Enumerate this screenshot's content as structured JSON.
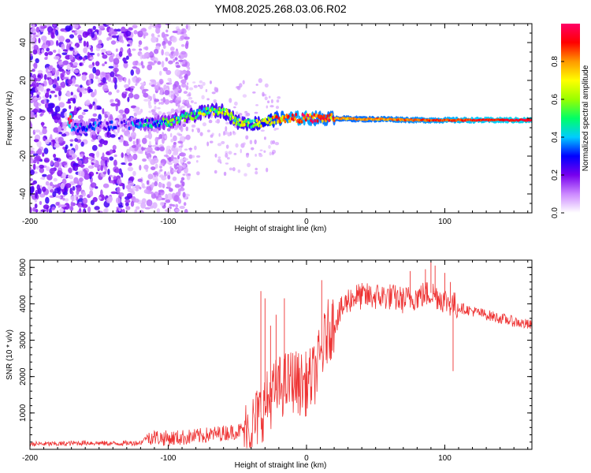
{
  "chart_data": [
    {
      "type": "heatmap",
      "title": "YM08.2025.268.03.06.R02",
      "xlabel": "Height of straight line (km)",
      "ylabel": "Frequency (Hz)",
      "xlim": [
        -200,
        163
      ],
      "ylim": [
        -50,
        50
      ],
      "xticks": [
        -200,
        -100,
        0,
        100
      ],
      "yticks": [
        -40,
        -20,
        0,
        20,
        40
      ],
      "colorbar": {
        "label": "Normalized spectral amplitude",
        "range": [
          0,
          1
        ],
        "ticks": [
          "0.0",
          "0.2",
          "0.4",
          "0.6",
          "0.8"
        ],
        "colors": [
          "#ffffff",
          "#cc88ff",
          "#7700ee",
          "#0000ff",
          "#00ccff",
          "#00ff66",
          "#99ff00",
          "#ffff00",
          "#ff9900",
          "#ff0000",
          "#ff0066"
        ]
      },
      "ridge": [
        {
          "x": -170,
          "f": -5.0,
          "a": 0.22
        },
        {
          "x": -160,
          "f": -4.5,
          "a": 0.28
        },
        {
          "x": -150,
          "f": -4.0,
          "a": 0.22
        },
        {
          "x": -140,
          "f": -4.0,
          "a": 0.15
        },
        {
          "x": -130,
          "f": -3.5,
          "a": 0.18
        },
        {
          "x": -120,
          "f": -3.0,
          "a": 0.32
        },
        {
          "x": -110,
          "f": -2.5,
          "a": 0.35
        },
        {
          "x": -100,
          "f": -2.0,
          "a": 0.4
        },
        {
          "x": -90,
          "f": 0.0,
          "a": 0.45
        },
        {
          "x": -80,
          "f": 2.0,
          "a": 0.5
        },
        {
          "x": -70,
          "f": 4.0,
          "a": 0.52
        },
        {
          "x": -60,
          "f": 4.0,
          "a": 0.55
        },
        {
          "x": -50,
          "f": -2.0,
          "a": 0.55
        },
        {
          "x": -40,
          "f": -3.0,
          "a": 0.55
        },
        {
          "x": -30,
          "f": -2.0,
          "a": 0.65
        },
        {
          "x": -20,
          "f": 0.0,
          "a": 0.75
        },
        {
          "x": -10,
          "f": 0.0,
          "a": 0.85
        },
        {
          "x": 0,
          "f": 0.0,
          "a": 0.85
        },
        {
          "x": 10,
          "f": 0.0,
          "a": 0.8
        },
        {
          "x": 20,
          "f": 0.0,
          "a": 0.78
        },
        {
          "x": 40,
          "f": -0.5,
          "a": 0.78
        },
        {
          "x": 60,
          "f": -0.5,
          "a": 0.8
        },
        {
          "x": 80,
          "f": -1.0,
          "a": 0.82
        },
        {
          "x": 100,
          "f": -1.0,
          "a": 0.85
        },
        {
          "x": 120,
          "f": -1.0,
          "a": 0.88
        },
        {
          "x": 140,
          "f": -1.0,
          "a": 0.9
        },
        {
          "x": 163,
          "f": -1.0,
          "a": 0.92
        }
      ]
    },
    {
      "type": "line",
      "xlabel": "Height of straight line (km)",
      "ylabel": "SNR (10 * v/v)",
      "xlim": [
        -200,
        163
      ],
      "ylim": [
        0,
        5200
      ],
      "xticks": [
        -200,
        -100,
        0,
        100
      ],
      "yticks": [
        1000,
        2000,
        3000,
        4000,
        5000
      ],
      "color": "#ee3333",
      "series": [
        {
          "name": "SNR",
          "x": [
            -200,
            -180,
            -160,
            -140,
            -120,
            -115,
            -100,
            -80,
            -60,
            -50,
            -40,
            -35,
            -30,
            -25,
            -20,
            -15,
            -10,
            -5,
            0,
            5,
            10,
            15,
            20,
            25,
            30,
            35,
            40,
            50,
            60,
            70,
            80,
            90,
            100,
            110,
            120,
            140,
            163
          ],
          "values": [
            150,
            150,
            180,
            160,
            180,
            350,
            300,
            350,
            450,
            500,
            600,
            900,
            1200,
            1500,
            1700,
            1800,
            1900,
            1800,
            1800,
            2000,
            2500,
            3200,
            3500,
            3800,
            4100,
            4200,
            4200,
            4200,
            4200,
            4100,
            4200,
            4300,
            4100,
            3900,
            3800,
            3600,
            3400
          ]
        }
      ],
      "spikes": [
        {
          "x": -33,
          "v": 4350
        },
        {
          "x": -30,
          "v": 4150
        },
        {
          "x": -26,
          "v": 3400
        },
        {
          "x": -22,
          "v": 3700
        },
        {
          "x": -16,
          "v": 4150
        },
        {
          "x": 11,
          "v": 4650
        },
        {
          "x": 40,
          "v": 4350
        },
        {
          "x": 75,
          "v": 4900
        },
        {
          "x": 86,
          "v": 4950
        },
        {
          "x": 90,
          "v": 5150
        },
        {
          "x": 93,
          "v": 5050
        },
        {
          "x": 100,
          "v": 4850
        },
        {
          "x": 104,
          "v": 4600
        },
        {
          "x": 106,
          "v": 2150
        }
      ]
    }
  ]
}
